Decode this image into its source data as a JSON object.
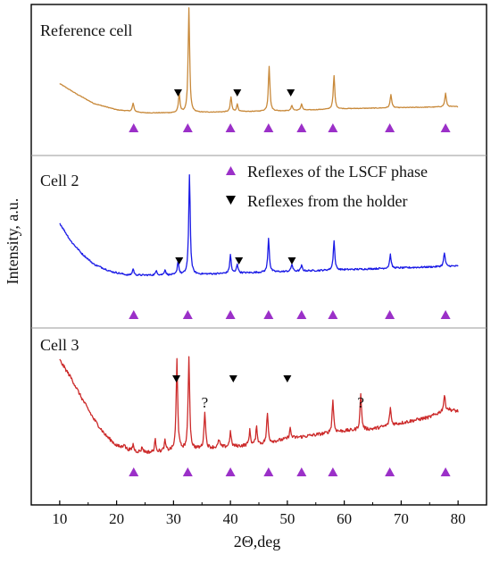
{
  "chart_data": {
    "type": "line",
    "xlabel": "2Θ,deg",
    "ylabel": "Intensity, a.u.",
    "xlim": [
      5,
      85
    ],
    "xticks": [
      10,
      20,
      30,
      40,
      50,
      60,
      70,
      80
    ],
    "grid": false,
    "legend": {
      "placement": "top-right of middle panel",
      "items": [
        {
          "label": "Reflexes of the LSCF phase",
          "marker": "triangle-up",
          "color": "#9b30c8"
        },
        {
          "label": "Reflexes from the holder",
          "marker": "triangle-down",
          "color": "#000000"
        }
      ]
    },
    "lsef_reflex_positions": [
      23,
      32.5,
      40,
      46.7,
      52.5,
      58,
      68,
      77.8
    ],
    "panels": [
      {
        "label": "Reference cell",
        "color": "#c8893a",
        "holder_reflexes": [
          30.8,
          41.2,
          50.6
        ],
        "question_marks": [],
        "baseline": [
          [
            10,
            0.32
          ],
          [
            13,
            0.22
          ],
          [
            16,
            0.13
          ],
          [
            20,
            0.07
          ],
          [
            25,
            0.04
          ],
          [
            30,
            0.04
          ],
          [
            40,
            0.05
          ],
          [
            50,
            0.06
          ],
          [
            60,
            0.08
          ],
          [
            70,
            0.09
          ],
          [
            80,
            0.1
          ]
        ],
        "peaks": [
          [
            22.9,
            0.08
          ],
          [
            31.0,
            0.18
          ],
          [
            32.7,
            1.0
          ],
          [
            40.1,
            0.14
          ],
          [
            41.2,
            0.07
          ],
          [
            46.8,
            0.43
          ],
          [
            50.8,
            0.05
          ],
          [
            52.5,
            0.06
          ],
          [
            58.2,
            0.32
          ],
          [
            68.2,
            0.13
          ],
          [
            77.8,
            0.13
          ]
        ]
      },
      {
        "label": "Cell 2",
        "color": "#1a1ae6",
        "holder_reflexes": [
          31.0,
          41.5,
          50.8
        ],
        "question_marks": [],
        "baseline": [
          [
            10,
            0.62
          ],
          [
            12,
            0.42
          ],
          [
            14,
            0.28
          ],
          [
            16,
            0.17
          ],
          [
            19,
            0.09
          ],
          [
            22,
            0.05
          ],
          [
            30,
            0.05
          ],
          [
            40,
            0.07
          ],
          [
            50,
            0.09
          ],
          [
            60,
            0.11
          ],
          [
            70,
            0.13
          ],
          [
            80,
            0.15
          ]
        ],
        "peaks": [
          [
            22.9,
            0.07
          ],
          [
            27.0,
            0.05
          ],
          [
            28.5,
            0.06
          ],
          [
            30.8,
            0.15
          ],
          [
            32.8,
            1.1
          ],
          [
            40.0,
            0.2
          ],
          [
            41.2,
            0.1
          ],
          [
            46.7,
            0.37
          ],
          [
            50.8,
            0.08
          ],
          [
            52.5,
            0.06
          ],
          [
            58.2,
            0.32
          ],
          [
            68.1,
            0.15
          ],
          [
            77.6,
            0.15
          ]
        ]
      },
      {
        "label": "Cell 3",
        "color": "#cc2a2a",
        "holder_reflexes": [
          30.5,
          40.5,
          50.0
        ],
        "question_marks": [
          35.5,
          62.9
        ],
        "baseline": [
          [
            10,
            1.0
          ],
          [
            12,
            0.82
          ],
          [
            14,
            0.6
          ],
          [
            16,
            0.4
          ],
          [
            18,
            0.24
          ],
          [
            20,
            0.13
          ],
          [
            23,
            0.07
          ],
          [
            26,
            0.06
          ],
          [
            30,
            0.08
          ],
          [
            35,
            0.1
          ],
          [
            40,
            0.12
          ],
          [
            45,
            0.14
          ],
          [
            50,
            0.2
          ],
          [
            55,
            0.24
          ],
          [
            60,
            0.28
          ],
          [
            65,
            0.3
          ],
          [
            70,
            0.36
          ],
          [
            75,
            0.42
          ],
          [
            78,
            0.5
          ],
          [
            80,
            0.48
          ]
        ],
        "peaks": [
          [
            21.3,
            0.05
          ],
          [
            22.9,
            0.07
          ],
          [
            24.5,
            0.05
          ],
          [
            26.8,
            0.12
          ],
          [
            28.5,
            0.1
          ],
          [
            30.6,
            0.92
          ],
          [
            32.7,
            0.95
          ],
          [
            35.5,
            0.38
          ],
          [
            38.0,
            0.08
          ],
          [
            40.0,
            0.15
          ],
          [
            43.4,
            0.15
          ],
          [
            44.6,
            0.18
          ],
          [
            46.5,
            0.3
          ],
          [
            50.5,
            0.1
          ],
          [
            58.0,
            0.33
          ],
          [
            62.9,
            0.36
          ],
          [
            68.1,
            0.18
          ],
          [
            77.6,
            0.15
          ]
        ]
      }
    ]
  }
}
